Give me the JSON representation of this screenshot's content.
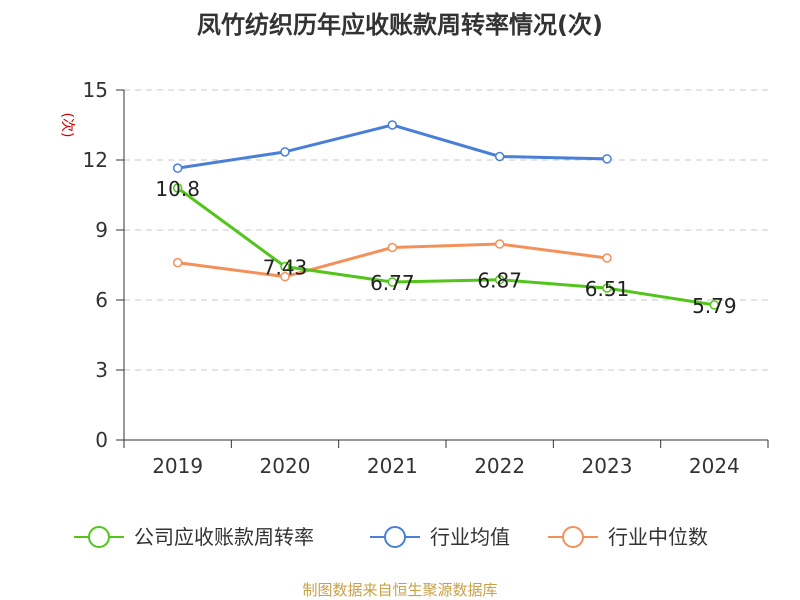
{
  "chart_data": {
    "type": "line",
    "title": "凤竹纺织历年应收账款周转率情况(次)",
    "ylabel": "(次)",
    "categories": [
      "2019",
      "2020",
      "2021",
      "2022",
      "2023",
      "2024"
    ],
    "ylim": [
      0,
      15
    ],
    "yticks": [
      "0",
      "3",
      "6",
      "9",
      "12",
      "15"
    ],
    "grid": "horizontal dashed",
    "legend_position": "bottom",
    "series": [
      {
        "name": "公司应收账款周转率",
        "color": "#52c41a",
        "values": [
          10.8,
          7.43,
          6.77,
          6.87,
          6.51,
          5.79
        ],
        "labels": [
          "10.8",
          "7.43",
          "6.77",
          "6.87",
          "6.51",
          "5.79"
        ]
      },
      {
        "name": "行业均值",
        "color": "#4a7fd8",
        "values": [
          11.65,
          12.35,
          13.5,
          12.15,
          12.05,
          null
        ]
      },
      {
        "name": "行业中位数",
        "color": "#f4915a",
        "values": [
          7.6,
          7.0,
          8.25,
          8.4,
          7.8,
          null
        ]
      }
    ],
    "source": "制图数据来自恒生聚源数据库"
  }
}
